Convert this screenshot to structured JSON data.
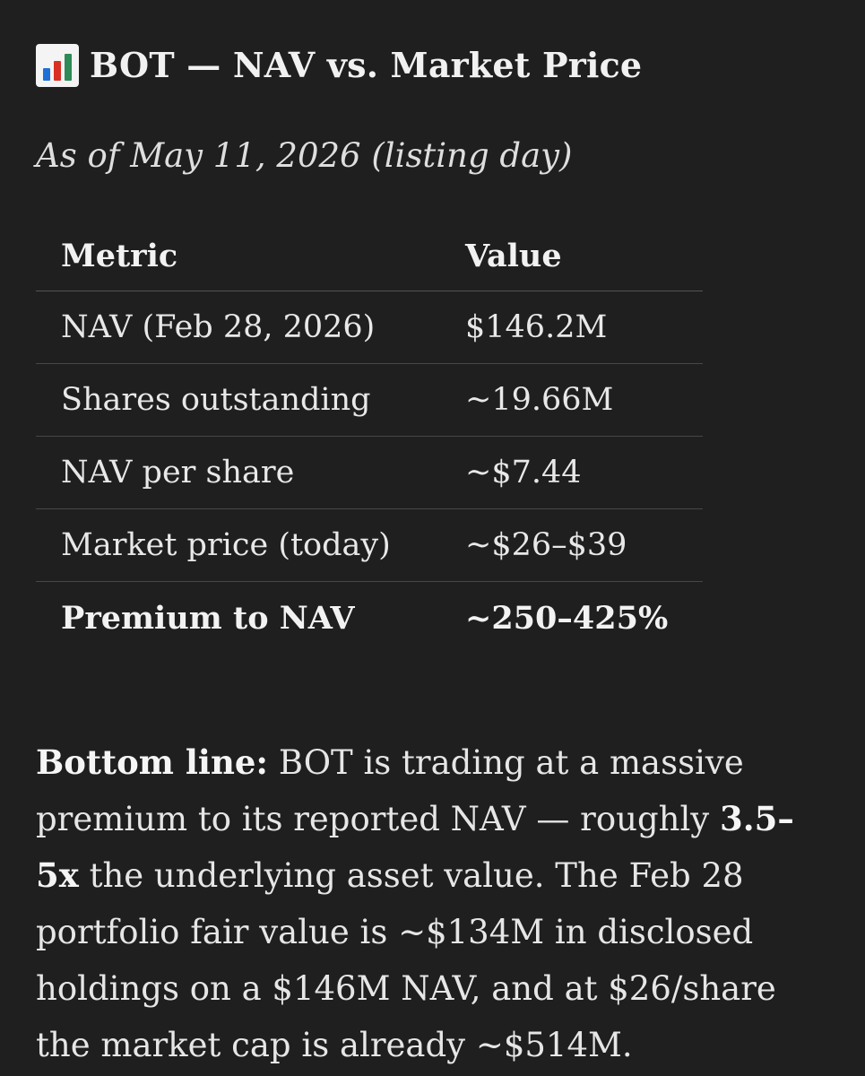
{
  "header": {
    "icon": "bar-chart-icon",
    "title": "BOT — NAV vs. Market Price"
  },
  "subtitle": "As of May 11, 2026 (listing day)",
  "table": {
    "columns": [
      "Metric",
      "Value"
    ],
    "rows": [
      [
        "NAV (Feb 28, 2026)",
        "$146.2M"
      ],
      [
        "Shares outstanding",
        "~19.66M"
      ],
      [
        "NAV per share",
        "~$7.44"
      ],
      [
        "Market price (today)",
        "~$26–$39"
      ],
      [
        "Premium to NAV",
        "~250–425%"
      ]
    ]
  },
  "summary": {
    "label": "Bottom line:",
    "text_1": " BOT is trading at a massive premium to its reported NAV — roughly ",
    "highlight": "3.5–5x",
    "text_2": " the underlying asset value. The Feb 28 portfolio fair value is ~$134M in disclosed holdings on a $146M NAV, and at $26/share the market cap is already ~$514M."
  },
  "colors": {
    "background": "#1f1f1f",
    "text": "#e6e6e6",
    "divider": "#474747",
    "icon_bars": [
      "#1f6fd6",
      "#d93025",
      "#2e8b57"
    ]
  }
}
